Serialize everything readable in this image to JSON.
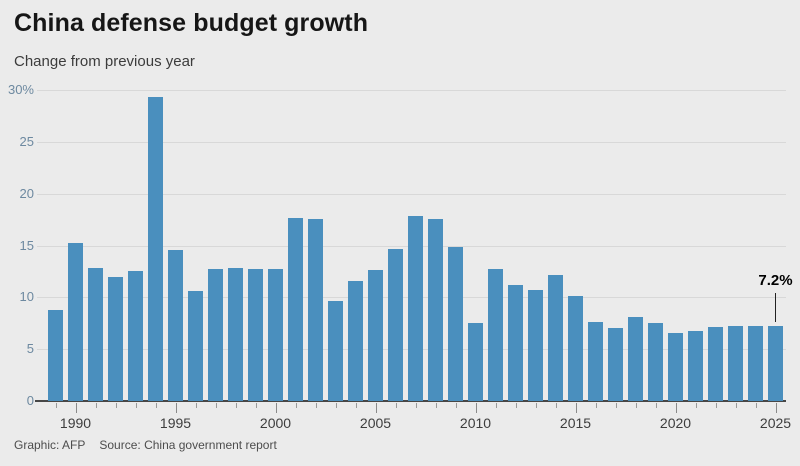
{
  "header": {
    "title": "China defense budget growth",
    "subtitle": "Change from previous year"
  },
  "footer": {
    "credit": "Graphic: AFP",
    "source": "Source: China government report"
  },
  "colors": {
    "background": "#ebebeb",
    "bar": "#4a8fbe",
    "gridline": "#d8d8d8",
    "axis_line": "#474747",
    "y_label": "#6d89a0",
    "x_label": "#3d3d3d",
    "annotation": "#000000"
  },
  "chart_data": {
    "type": "bar",
    "title": "China defense budget growth",
    "subtitle": "Change from previous year",
    "xlabel": "",
    "ylabel": "Change from previous year (%)",
    "ylim": [
      0,
      30
    ],
    "grid": true,
    "legend": "none",
    "y_ticks": [
      0,
      5,
      10,
      15,
      20,
      25,
      30
    ],
    "y_tick_labels": [
      "0",
      "5",
      "10",
      "15",
      "20",
      "25",
      "30%"
    ],
    "x_tick_labels": [
      "1990",
      "1995",
      "2000",
      "2005",
      "2010",
      "2015",
      "2020",
      "2025"
    ],
    "categories": [
      1989,
      1990,
      1991,
      1992,
      1993,
      1994,
      1995,
      1996,
      1997,
      1998,
      1999,
      2000,
      2001,
      2002,
      2003,
      2004,
      2005,
      2006,
      2007,
      2008,
      2009,
      2010,
      2011,
      2012,
      2013,
      2014,
      2015,
      2016,
      2017,
      2018,
      2019,
      2020,
      2021,
      2022,
      2023,
      2024,
      2025
    ],
    "values": [
      8.8,
      15.2,
      12.8,
      12.0,
      12.5,
      29.3,
      14.6,
      10.6,
      12.7,
      12.8,
      12.7,
      12.7,
      17.7,
      17.6,
      9.6,
      11.6,
      12.6,
      14.7,
      17.8,
      17.6,
      14.9,
      7.5,
      12.7,
      11.2,
      10.7,
      12.2,
      10.1,
      7.6,
      7.0,
      8.1,
      7.5,
      6.6,
      6.8,
      7.1,
      7.2,
      7.2,
      7.2
    ],
    "annotation": {
      "text": "7.2%",
      "year": 2025
    }
  }
}
